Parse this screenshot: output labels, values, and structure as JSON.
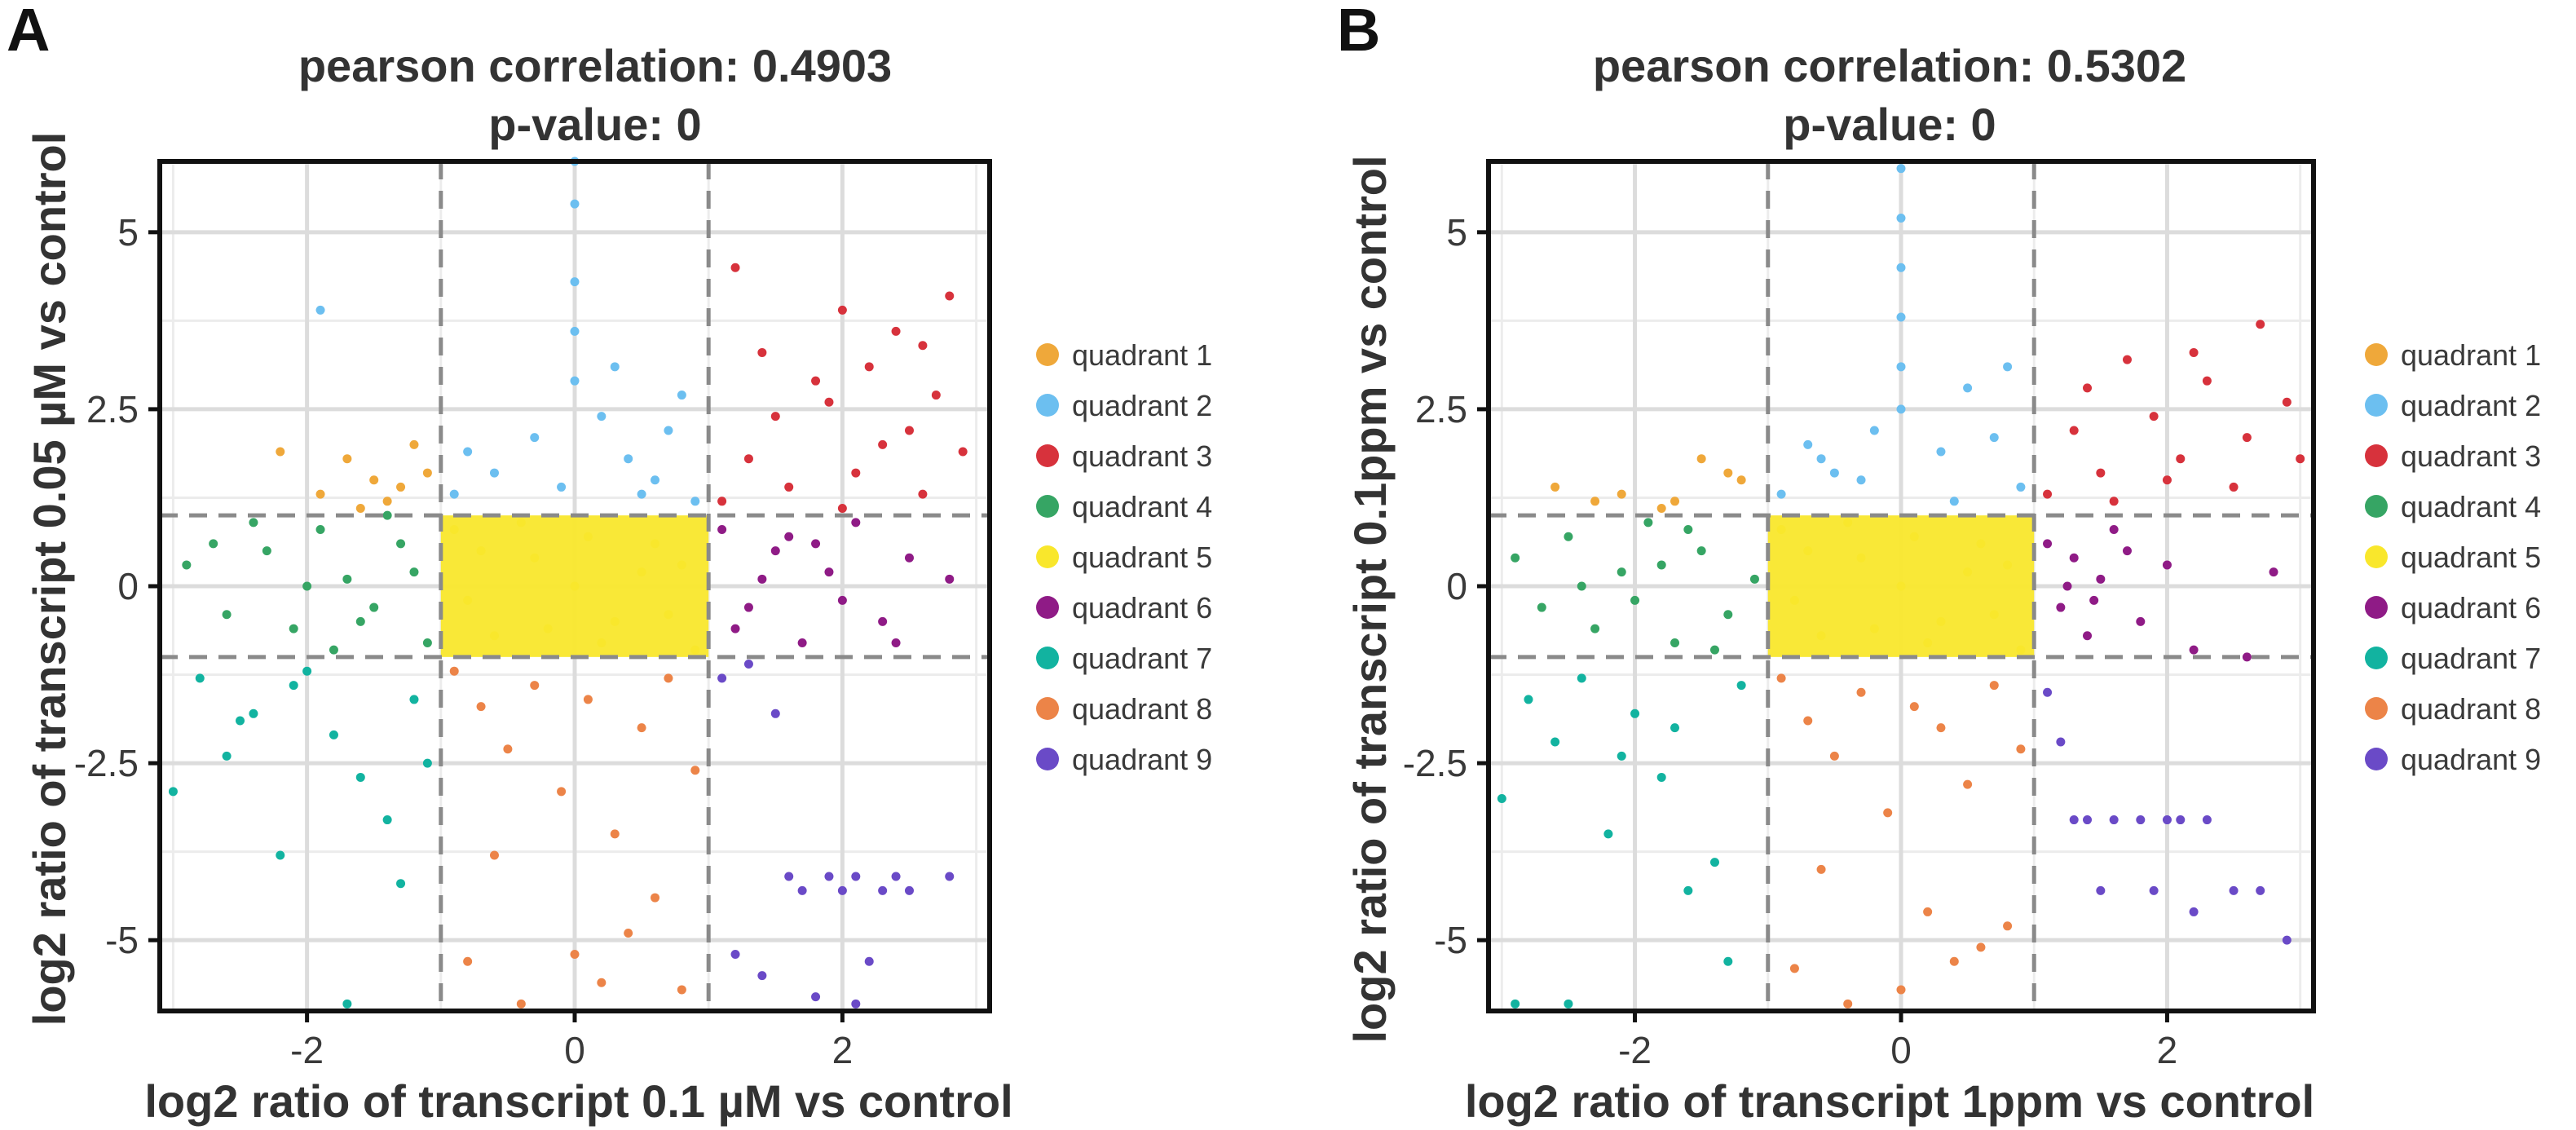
{
  "quadrant_colors": {
    "quadrant 1": "#efa83a",
    "quadrant 2": "#6cbff0",
    "quadrant 3": "#d7323c",
    "quadrant 4": "#36a564",
    "quadrant 5": "#f9e72c",
    "quadrant 6": "#8f1b86",
    "quadrant 7": "#12b3a0",
    "quadrant 8": "#ec8448",
    "quadrant 9": "#6a4ac7"
  },
  "chart_data": [
    {
      "type": "scatter",
      "panel": "A",
      "title": "pearson correlation: 0.4903",
      "subtitle": "p-value: 0",
      "xlabel": "log2 ratio of transcript 0.1 µM vs control",
      "ylabel": "log2 ratio of transcript 0.05 µM vs control",
      "xlim": [
        -3.1,
        3.1
      ],
      "ylim": [
        -6.0,
        6.0
      ],
      "xticks": [
        -2,
        0,
        2
      ],
      "xtick_labels": [
        "-2",
        "0",
        "2"
      ],
      "yticks": [
        -5,
        -2.5,
        0,
        2.5,
        5
      ],
      "ytick_labels": [
        "-5",
        "-2.5",
        "0",
        "2.5",
        "5"
      ],
      "thresholds": {
        "x": [
          -1,
          1
        ],
        "y": [
          -1,
          1
        ]
      },
      "grid": true,
      "legend_position": "right",
      "legend": [
        "quadrant 1",
        "quadrant 2",
        "quadrant 3",
        "quadrant 4",
        "quadrant 5",
        "quadrant 6",
        "quadrant 7",
        "quadrant 8",
        "quadrant 9"
      ],
      "series": [
        {
          "name": "quadrant 1",
          "x": [
            -2.2,
            -1.9,
            -1.7,
            -1.5,
            -1.4,
            -1.2,
            -1.1,
            -1.6,
            -1.3
          ],
          "y": [
            1.9,
            1.3,
            1.8,
            1.5,
            1.2,
            2.0,
            1.6,
            1.1,
            1.4
          ]
        },
        {
          "name": "quadrant 2",
          "x": [
            -0.9,
            -0.6,
            -0.3,
            -0.1,
            0.0,
            0.0,
            0.0,
            0.0,
            0.0,
            0.2,
            0.4,
            0.6,
            0.8,
            0.9,
            -0.8,
            0.3,
            -1.9,
            0.7,
            0.5
          ],
          "y": [
            1.3,
            1.6,
            2.1,
            1.4,
            6.0,
            5.4,
            4.3,
            3.6,
            2.9,
            2.4,
            1.8,
            1.5,
            2.7,
            1.2,
            1.9,
            3.1,
            3.9,
            2.2,
            1.3
          ]
        },
        {
          "name": "quadrant 3",
          "x": [
            1.1,
            1.2,
            1.3,
            1.5,
            1.6,
            1.8,
            2.0,
            2.1,
            2.2,
            2.4,
            2.5,
            2.6,
            2.7,
            2.8,
            2.9,
            2.0,
            1.4,
            2.3,
            1.9,
            2.6
          ],
          "y": [
            1.2,
            4.5,
            1.8,
            2.4,
            1.4,
            2.9,
            3.9,
            1.6,
            3.1,
            3.6,
            2.2,
            1.3,
            2.7,
            4.1,
            1.9,
            1.1,
            3.3,
            2.0,
            2.6,
            3.4
          ]
        },
        {
          "name": "quadrant 4",
          "x": [
            -2.9,
            -2.6,
            -2.3,
            -2.1,
            -1.9,
            -1.7,
            -1.5,
            -1.3,
            -1.1,
            -2.4,
            -1.8,
            -1.2,
            -2.0,
            -1.4,
            -2.7,
            -1.6
          ],
          "y": [
            0.3,
            -0.4,
            0.5,
            -0.6,
            0.8,
            0.1,
            -0.3,
            0.6,
            -0.8,
            0.9,
            -0.9,
            0.2,
            0.0,
            1.0,
            0.6,
            -0.5
          ]
        },
        {
          "name": "quadrant 5",
          "x": [
            -0.9,
            -0.6,
            -0.3,
            0.0,
            0.3,
            0.6,
            0.9,
            -0.8,
            -0.4,
            0.2,
            0.5,
            0.8,
            -0.7,
            0.1,
            0.7,
            -0.2
          ],
          "y": [
            0.8,
            -0.7,
            0.4,
            0.0,
            -0.5,
            0.6,
            -0.9,
            -0.2,
            0.9,
            -0.8,
            0.2,
            0.3,
            0.5,
            0.7,
            -0.4,
            -0.6
          ]
        },
        {
          "name": "quadrant 6",
          "x": [
            1.1,
            1.3,
            1.5,
            1.7,
            1.9,
            2.1,
            2.3,
            2.5,
            2.8,
            1.2,
            1.6,
            2.0,
            2.4,
            1.4,
            1.8
          ],
          "y": [
            0.8,
            -0.3,
            0.5,
            -0.8,
            0.2,
            0.9,
            -0.5,
            0.4,
            0.1,
            -0.6,
            0.7,
            -0.2,
            -0.8,
            0.1,
            0.6
          ]
        },
        {
          "name": "quadrant 7",
          "x": [
            -3.0,
            -2.8,
            -2.6,
            -2.4,
            -2.2,
            -2.0,
            -1.8,
            -1.6,
            -1.4,
            -1.2,
            -2.5,
            -1.7,
            -1.3,
            -2.1,
            -1.1
          ],
          "y": [
            -2.9,
            -1.3,
            -2.4,
            -1.8,
            -3.8,
            -1.2,
            -2.1,
            -2.7,
            -3.3,
            -1.6,
            -1.9,
            -5.9,
            -4.2,
            -1.4,
            -2.5
          ]
        },
        {
          "name": "quadrant 8",
          "x": [
            -0.9,
            -0.7,
            -0.5,
            -0.3,
            -0.1,
            0.1,
            0.3,
            0.5,
            0.7,
            0.9,
            -0.8,
            -0.4,
            0.2,
            0.6,
            -0.6,
            0.0,
            0.4,
            0.8
          ],
          "y": [
            -1.2,
            -1.7,
            -2.3,
            -1.4,
            -2.9,
            -1.6,
            -3.5,
            -2.0,
            -1.3,
            -2.6,
            -5.3,
            -5.9,
            -5.6,
            -4.4,
            -3.8,
            -5.2,
            -4.9,
            -5.7
          ]
        },
        {
          "name": "quadrant 9",
          "x": [
            1.1,
            1.3,
            1.5,
            1.6,
            1.7,
            1.9,
            2.0,
            2.1,
            2.2,
            2.3,
            2.4,
            2.5,
            2.8,
            1.2,
            1.4,
            1.8,
            2.1
          ],
          "y": [
            -1.3,
            -1.1,
            -1.8,
            -4.1,
            -4.3,
            -4.1,
            -4.3,
            -4.1,
            -5.3,
            -4.3,
            -4.1,
            -4.3,
            -4.1,
            -5.2,
            -5.5,
            -5.8,
            -5.9
          ]
        }
      ]
    },
    {
      "type": "scatter",
      "panel": "B",
      "title": "pearson correlation: 0.5302",
      "subtitle": "p-value: 0",
      "xlabel": "log2 ratio of transcript 1ppm vs control",
      "ylabel": "log2 ratio of transcript 0.1ppm vs control",
      "xlim": [
        -3.1,
        3.1
      ],
      "ylim": [
        -6.0,
        6.0
      ],
      "xticks": [
        -2,
        0,
        2
      ],
      "xtick_labels": [
        "-2",
        "0",
        "2"
      ],
      "yticks": [
        -5,
        -2.5,
        0,
        2.5,
        5
      ],
      "ytick_labels": [
        "-5",
        "-2.5",
        "0",
        "2.5",
        "5"
      ],
      "thresholds": {
        "x": [
          -1,
          1
        ],
        "y": [
          -1,
          1
        ]
      },
      "grid": true,
      "legend_position": "right",
      "legend": [
        "quadrant 1",
        "quadrant 2",
        "quadrant 3",
        "quadrant 4",
        "quadrant 5",
        "quadrant 6",
        "quadrant 7",
        "quadrant 8",
        "quadrant 9"
      ],
      "series": [
        {
          "name": "quadrant 1",
          "x": [
            -2.6,
            -2.3,
            -2.1,
            -1.8,
            -1.5,
            -1.3,
            -1.2,
            -1.7
          ],
          "y": [
            1.4,
            1.2,
            1.3,
            1.1,
            1.8,
            1.6,
            1.5,
            1.2
          ]
        },
        {
          "name": "quadrant 2",
          "x": [
            -0.9,
            -0.7,
            -0.5,
            -0.2,
            0.0,
            0.0,
            0.0,
            0.0,
            0.0,
            0.0,
            0.3,
            0.5,
            0.7,
            0.9,
            -0.6,
            0.4,
            0.8,
            -0.3
          ],
          "y": [
            1.3,
            2.0,
            1.6,
            2.2,
            5.9,
            5.2,
            4.5,
            3.8,
            3.1,
            2.5,
            1.9,
            2.8,
            2.1,
            1.4,
            1.8,
            1.2,
            3.1,
            1.5
          ]
        },
        {
          "name": "quadrant 3",
          "x": [
            1.1,
            1.3,
            1.5,
            1.7,
            1.9,
            2.1,
            2.3,
            2.5,
            2.7,
            2.9,
            2.2,
            1.6,
            2.6,
            3.0,
            1.4,
            2.0
          ],
          "y": [
            1.3,
            2.2,
            1.6,
            3.2,
            2.4,
            1.8,
            2.9,
            1.4,
            3.7,
            2.6,
            3.3,
            1.2,
            2.1,
            1.8,
            2.8,
            1.5
          ]
        },
        {
          "name": "quadrant 4",
          "x": [
            -2.9,
            -2.7,
            -2.5,
            -2.3,
            -2.1,
            -1.9,
            -1.7,
            -1.5,
            -1.3,
            -1.1,
            -2.4,
            -1.8,
            -1.4,
            -2.0,
            -1.6
          ],
          "y": [
            0.4,
            -0.3,
            0.7,
            -0.6,
            0.2,
            0.9,
            -0.8,
            0.5,
            -0.4,
            0.1,
            0.0,
            0.3,
            -0.9,
            -0.2,
            0.8
          ]
        },
        {
          "name": "quadrant 5",
          "x": [
            -0.9,
            -0.6,
            -0.3,
            0.0,
            0.3,
            0.6,
            0.9,
            -0.8,
            -0.4,
            0.2,
            0.5,
            0.8,
            -0.7,
            0.1,
            0.7,
            -0.2
          ],
          "y": [
            0.8,
            -0.7,
            0.4,
            0.0,
            -0.5,
            0.6,
            -0.9,
            -0.2,
            0.9,
            -0.8,
            0.2,
            0.3,
            0.5,
            0.7,
            -0.4,
            -0.6
          ]
        },
        {
          "name": "quadrant 6",
          "x": [
            1.1,
            1.2,
            1.3,
            1.4,
            1.5,
            1.6,
            1.8,
            2.0,
            2.2,
            2.6,
            1.25,
            1.45,
            1.7,
            2.8
          ],
          "y": [
            0.6,
            -0.3,
            0.4,
            -0.7,
            0.1,
            0.8,
            -0.5,
            0.3,
            -0.9,
            -1.0,
            0.0,
            -0.2,
            0.5,
            0.2
          ]
        },
        {
          "name": "quadrant 7",
          "x": [
            -3.0,
            -2.8,
            -2.6,
            -2.4,
            -2.2,
            -2.0,
            -1.8,
            -1.6,
            -1.4,
            -1.2,
            -2.5,
            -1.7,
            -1.3,
            -2.1,
            -2.9
          ],
          "y": [
            -3.0,
            -1.6,
            -2.2,
            -1.3,
            -3.5,
            -1.8,
            -2.7,
            -4.3,
            -3.9,
            -1.4,
            -5.9,
            -2.0,
            -5.3,
            -2.4,
            -5.9
          ]
        },
        {
          "name": "quadrant 8",
          "x": [
            -0.9,
            -0.7,
            -0.5,
            -0.3,
            -0.1,
            0.1,
            0.3,
            0.5,
            0.7,
            0.9,
            -0.8,
            -0.4,
            0.2,
            0.6,
            -0.6,
            0.0,
            0.4,
            0.8
          ],
          "y": [
            -1.3,
            -1.9,
            -2.4,
            -1.5,
            -3.2,
            -1.7,
            -2.0,
            -2.8,
            -1.4,
            -2.3,
            -5.4,
            -5.9,
            -4.6,
            -5.1,
            -4.0,
            -5.7,
            -5.3,
            -4.8
          ]
        },
        {
          "name": "quadrant 9",
          "x": [
            1.1,
            1.2,
            1.4,
            1.6,
            1.8,
            2.0,
            2.1,
            2.3,
            2.5,
            2.7,
            2.9,
            1.5,
            1.9,
            2.2,
            1.3
          ],
          "y": [
            -1.5,
            -2.2,
            -3.3,
            -3.3,
            -3.3,
            -3.3,
            -3.3,
            -3.3,
            -4.3,
            -4.3,
            -5.0,
            -4.3,
            -4.3,
            -4.6,
            -3.3
          ]
        }
      ]
    }
  ]
}
